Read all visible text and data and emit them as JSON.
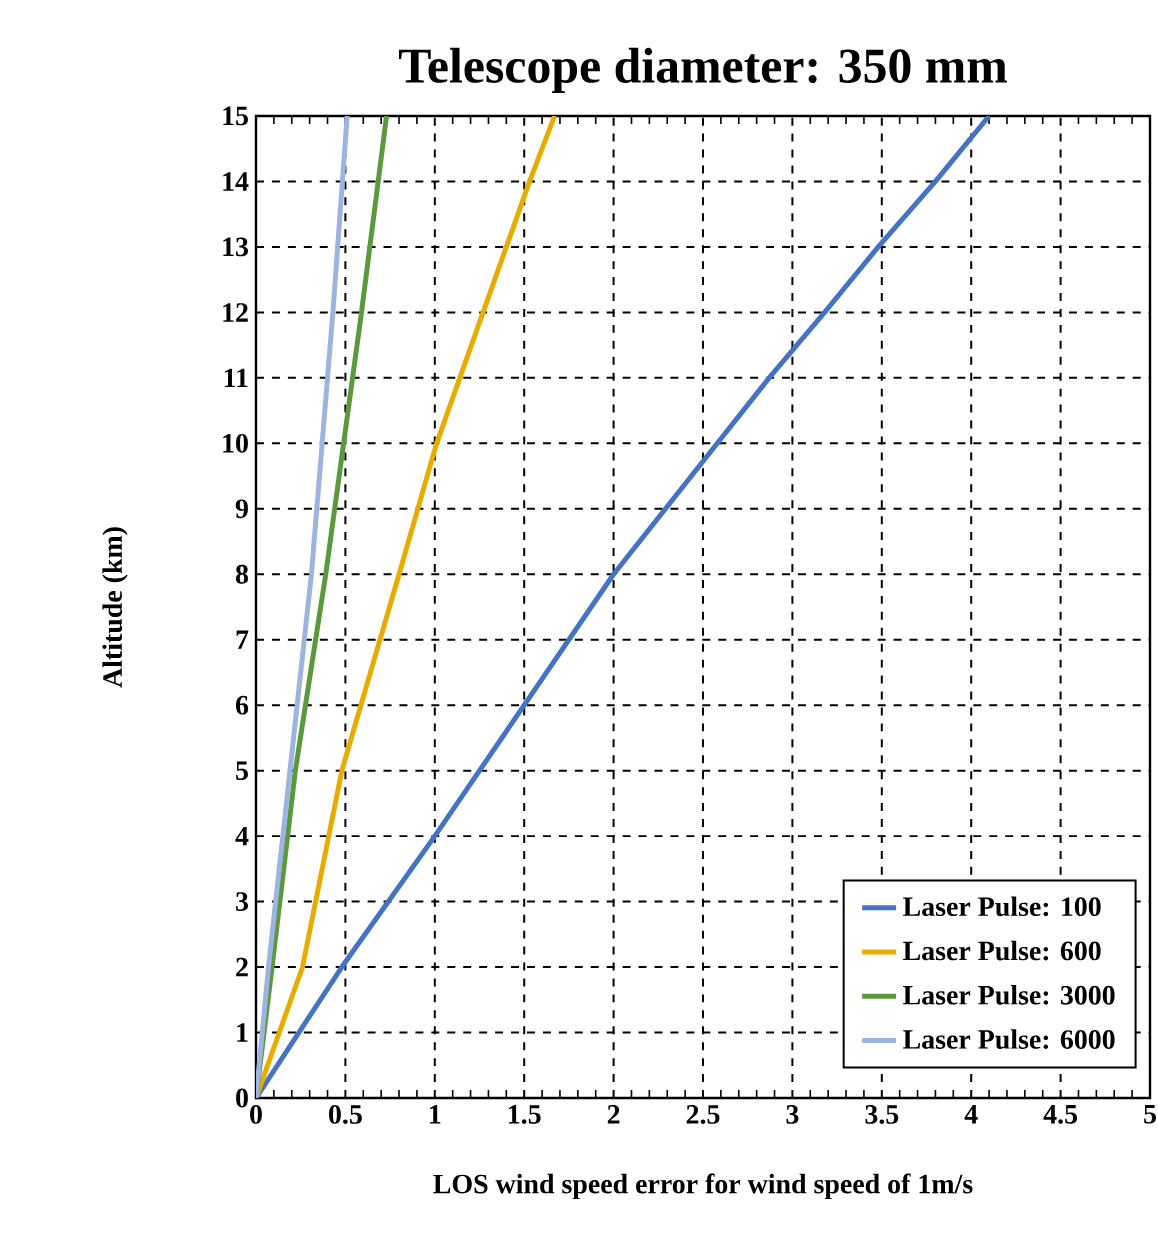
{
  "chart_data": {
    "type": "line",
    "title": "Telescope diameter: 350 mm",
    "xlabel": "LOS wind speed error for wind speed of 1m/s",
    "ylabel": "Altitude (km)",
    "xlim": [
      0,
      5
    ],
    "ylim": [
      0,
      15
    ],
    "xticks": [
      0,
      0.5,
      1,
      1.5,
      2,
      2.5,
      3,
      3.5,
      4,
      4.5,
      5
    ],
    "yticks": [
      0,
      1,
      2,
      3,
      4,
      5,
      6,
      7,
      8,
      9,
      10,
      11,
      12,
      13,
      14,
      15
    ],
    "grid": true,
    "legend": "bottom right",
    "line_style": "solid",
    "marker": "none",
    "series": [
      {
        "name": "Laser Pulse: 100",
        "color": "#4472c4",
        "x": [
          0,
          0.48,
          1.0,
          1.5,
          2.0,
          2.58,
          2.87,
          3.18,
          3.48,
          3.8,
          4.1
        ],
        "values": [
          0,
          2,
          4,
          6,
          8,
          10,
          11,
          12,
          13,
          14,
          15
        ]
      },
      {
        "name": "Laser Pulse: 600",
        "color": "#e8ac00",
        "x": [
          0,
          0.26,
          0.48,
          0.8,
          1.01,
          1.27,
          1.53,
          1.67
        ],
        "values": [
          0,
          2,
          5,
          8,
          10,
          12,
          14,
          15
        ]
      },
      {
        "name": "Laser Pulse: 3000",
        "color": "#5a9a3c",
        "x": [
          0,
          0.09,
          0.22,
          0.39,
          0.49,
          0.59,
          0.73
        ],
        "values": [
          0,
          2,
          5,
          8,
          10,
          12,
          15
        ]
      },
      {
        "name": "Laser Pulse: 6000",
        "color": "#9db3e0",
        "x": [
          0,
          0.07,
          0.19,
          0.31,
          0.37,
          0.43,
          0.51
        ],
        "values": [
          0,
          2,
          5,
          8,
          10,
          12,
          15
        ]
      }
    ]
  }
}
